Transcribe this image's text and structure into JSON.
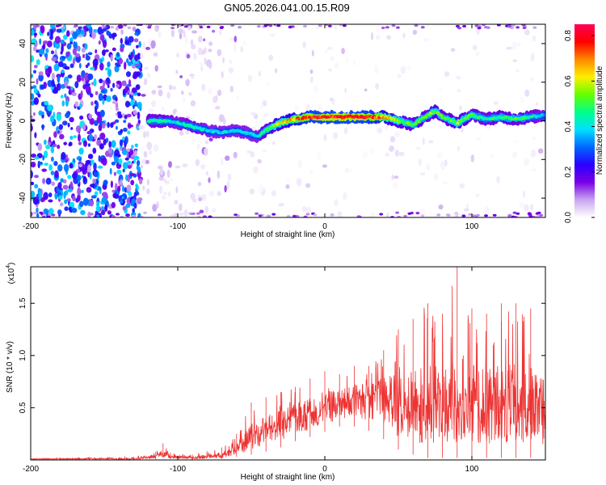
{
  "title": "GN05.2026.041.00.15.R09",
  "chart_data": [
    {
      "type": "heatmap",
      "title": "GN05.2026.041.00.15.R09",
      "xlabel": "Height of straight line (km)",
      "ylabel": "Frequency (Hz)",
      "xlim": [
        -200,
        150
      ],
      "ylim": [
        -50,
        50
      ],
      "x_ticks": [
        -200,
        -100,
        0,
        100
      ],
      "x_tick_labels": [
        "-200",
        "-100",
        "0",
        "100"
      ],
      "y_ticks": [
        -40,
        -20,
        0,
        20,
        40
      ],
      "y_tick_labels": [
        "-40",
        "-20",
        "0",
        "20",
        "40"
      ],
      "colorbar": {
        "label": "Normalized spectral amplitude",
        "range": [
          0,
          0.85
        ],
        "ticks": [
          0,
          0.2,
          0.4,
          0.6,
          0.8
        ],
        "tick_labels": [
          "0.0",
          "0.2",
          "0.4",
          "0.6",
          "0.8"
        ],
        "colormap": [
          "#ffffff",
          "#c9a6f0",
          "#7a00e6",
          "#2a00ff",
          "#0066ff",
          "#00e0ff",
          "#00ff88",
          "#66ff00",
          "#ffee00",
          "#ff8800",
          "#ff0000",
          "#ff0055"
        ]
      },
      "ridge": {
        "x": [
          -120,
          -110,
          -100,
          -90,
          -80,
          -70,
          -60,
          -50,
          -45,
          -40,
          -30,
          -20,
          -10,
          0,
          10,
          20,
          30,
          40,
          50,
          60,
          70,
          75,
          80,
          90,
          100,
          110,
          120,
          130,
          140,
          150
        ],
        "frequency": [
          0,
          0,
          -1,
          -3,
          -5,
          -6,
          -5,
          -7,
          -8,
          -5,
          -1,
          1,
          2,
          2,
          2,
          2,
          2,
          2,
          0,
          -2,
          3,
          5,
          2,
          -1,
          3,
          1,
          2,
          1,
          2,
          3
        ],
        "amplitude": [
          0.45,
          0.45,
          0.4,
          0.45,
          0.4,
          0.4,
          0.4,
          0.4,
          0.4,
          0.5,
          0.6,
          0.7,
          0.8,
          0.82,
          0.82,
          0.82,
          0.8,
          0.7,
          0.55,
          0.5,
          0.5,
          0.55,
          0.5,
          0.55,
          0.5,
          0.45,
          0.5,
          0.5,
          0.45,
          0.4
        ]
      },
      "noise_regions": [
        {
          "x_range": [
            -200,
            -125
          ],
          "density": "high",
          "amplitude": 0.3
        },
        {
          "x_range": [
            -125,
            -60
          ],
          "density": "medium",
          "amplitude": 0.1
        },
        {
          "x_range": [
            -60,
            150
          ],
          "density": "low",
          "amplitude": 0.05
        }
      ]
    },
    {
      "type": "line",
      "xlabel": "Height of straight line (km)",
      "ylabel": "SNR (10 * v/v)",
      "scale_note": "(x10",
      "scale_exponent": "4",
      "color": "#ee3333",
      "xlim": [
        -200,
        150
      ],
      "ylim": [
        0,
        1.85
      ],
      "x_ticks": [
        -200,
        -100,
        0,
        100
      ],
      "x_tick_labels": [
        "-200",
        "-100",
        "0",
        "100"
      ],
      "y_ticks": [
        0.5,
        1.0,
        1.5
      ],
      "y_tick_labels": [
        "0.5",
        "1.0",
        "1.5"
      ],
      "envelope": {
        "x": [
          -200,
          -130,
          -115,
          -110,
          -105,
          -90,
          -70,
          -60,
          -50,
          -40,
          -30,
          -20,
          -10,
          0,
          10,
          20,
          30,
          40,
          50,
          60,
          70,
          80,
          90,
          100,
          110,
          120,
          130,
          140,
          150
        ],
        "min": [
          0.0,
          0.0,
          0.01,
          0.02,
          0.01,
          0.0,
          0.01,
          0.03,
          0.05,
          0.08,
          0.12,
          0.18,
          0.22,
          0.27,
          0.32,
          0.32,
          0.28,
          0.2,
          0.1,
          0.05,
          0.02,
          0.02,
          0.02,
          0.02,
          0.02,
          0.02,
          0.02,
          0.02,
          0.02
        ],
        "max": [
          0.02,
          0.03,
          0.08,
          0.16,
          0.07,
          0.05,
          0.12,
          0.25,
          0.55,
          0.6,
          0.65,
          0.7,
          0.78,
          0.85,
          0.82,
          0.9,
          0.9,
          1.05,
          1.25,
          1.35,
          1.5,
          1.4,
          1.85,
          1.45,
          1.4,
          1.5,
          1.5,
          1.45,
          1.2
        ],
        "mean": [
          0.01,
          0.01,
          0.03,
          0.06,
          0.03,
          0.02,
          0.04,
          0.1,
          0.2,
          0.28,
          0.33,
          0.4,
          0.45,
          0.5,
          0.55,
          0.58,
          0.6,
          0.58,
          0.5,
          0.45,
          0.45,
          0.45,
          0.5,
          0.5,
          0.45,
          0.45,
          0.45,
          0.45,
          0.4
        ]
      }
    }
  ]
}
